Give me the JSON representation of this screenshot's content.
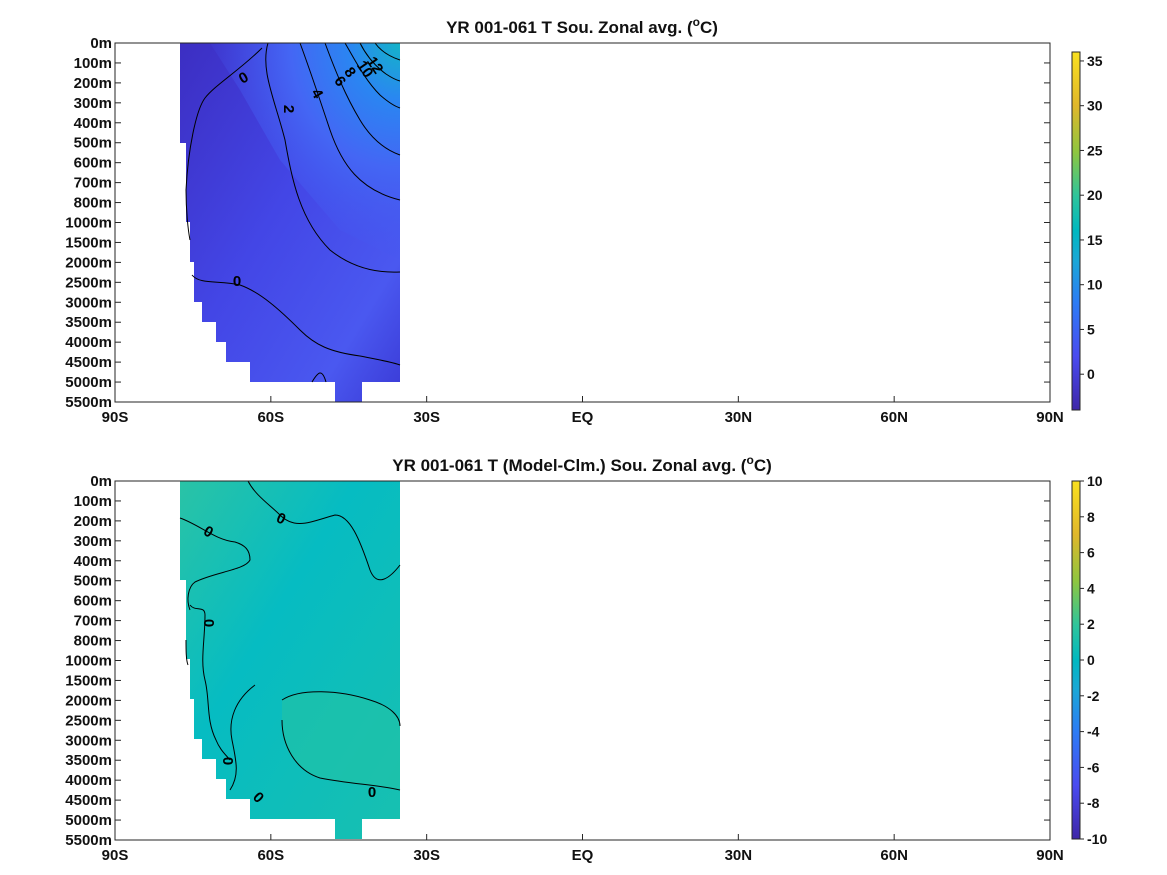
{
  "figure": {
    "colors": {
      "background": "#ffffff",
      "axis": "#262626",
      "contour": "#000000",
      "colormap": [
        "#3e26a8",
        "#4a4bf0",
        "#2d7cf5",
        "#1aa8d6",
        "#00b8c0",
        "#30c59a",
        "#8ec63f",
        "#e0b72b",
        "#f9e01f"
      ]
    }
  },
  "chart_data": [
    {
      "type": "heatmap",
      "title_main": "YR 001-061 T Sou. Zonal avg. (",
      "title_sup": "o",
      "title_end": "C)",
      "x_ticks": [
        "90S",
        "60S",
        "30S",
        "EQ",
        "30N",
        "60N",
        "90N"
      ],
      "y_ticks": [
        "0m",
        "100m",
        "200m",
        "300m",
        "400m",
        "500m",
        "600m",
        "700m",
        "800m",
        "1000m",
        "1500m",
        "2000m",
        "2500m",
        "3000m",
        "3500m",
        "4000m",
        "4500m",
        "5000m",
        "5500m"
      ],
      "colorbar": {
        "min": -4,
        "max": 36,
        "ticks": [
          "0",
          "5",
          "10",
          "15",
          "20",
          "25",
          "30",
          "35"
        ],
        "tick_values": [
          0,
          5,
          10,
          15,
          20,
          25,
          30,
          35
        ]
      },
      "data_extent": {
        "lat_min": -78,
        "lat_max": -35
      },
      "surface_value_at_north_edge": 14,
      "deep_value": 0,
      "contour_labels": [
        {
          "text": "0",
          "lat": -71,
          "depth": "200m"
        },
        {
          "text": "2",
          "lat": -62,
          "depth": "400m"
        },
        {
          "text": "4",
          "lat": -53,
          "depth": "300m"
        },
        {
          "text": "6",
          "lat": -49,
          "depth": "200m"
        },
        {
          "text": "8",
          "lat": -47,
          "depth": "200m"
        },
        {
          "text": "10",
          "lat": -44,
          "depth": "100m"
        },
        {
          "text": "12",
          "lat": -42,
          "depth": "100m"
        },
        {
          "text": "0",
          "lat": -72,
          "depth": "2500m"
        }
      ]
    },
    {
      "type": "heatmap",
      "title_main": "YR 001-061 T (Model-Clm.) Sou. Zonal avg. (",
      "title_sup": "o",
      "title_end": "C)",
      "x_ticks": [
        "90S",
        "60S",
        "30S",
        "EQ",
        "30N",
        "60N",
        "90N"
      ],
      "y_ticks": [
        "0m",
        "100m",
        "200m",
        "300m",
        "400m",
        "500m",
        "600m",
        "700m",
        "800m",
        "1000m",
        "1500m",
        "2000m",
        "2500m",
        "3000m",
        "3500m",
        "4000m",
        "4500m",
        "5000m",
        "5500m"
      ],
      "colorbar": {
        "min": -10,
        "max": 10,
        "ticks": [
          "10",
          "8",
          "6",
          "4",
          "2",
          "0",
          "-2",
          "-4",
          "-6",
          "-8",
          "-10"
        ],
        "tick_values": [
          10,
          8,
          6,
          4,
          2,
          0,
          -2,
          -4,
          -6,
          -8,
          -10
        ]
      },
      "data_extent": {
        "lat_min": -78,
        "lat_max": -35
      },
      "contour_labels": [
        {
          "text": "0",
          "lat": -75,
          "depth": "300m"
        },
        {
          "text": "0",
          "lat": -60,
          "depth": "200m"
        },
        {
          "text": "0",
          "lat": -74,
          "depth": "700m"
        },
        {
          "text": "0",
          "lat": -72,
          "depth": "3500m"
        },
        {
          "text": "0",
          "lat": -68,
          "depth": "4500m"
        },
        {
          "text": "0",
          "lat": -43,
          "depth": "4000m"
        }
      ]
    }
  ]
}
